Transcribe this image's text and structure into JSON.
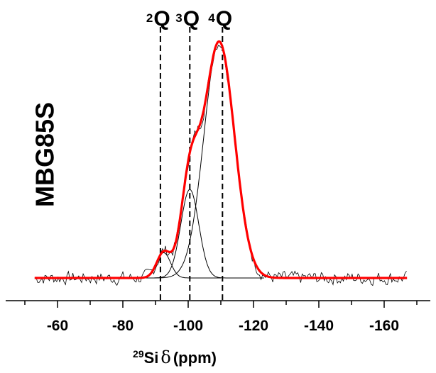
{
  "chart_data": {
    "type": "line",
    "title": "",
    "sample_label": "MBG85S",
    "xlabel": {
      "isotope_mass": "29",
      "element": "Si",
      "symbol": "δ",
      "unit": "(ppm)"
    },
    "ylabel": "",
    "x_reversed": true,
    "xlim": [
      -53,
      -175
    ],
    "xticks": [
      -60,
      -80,
      -100,
      -120,
      -140,
      -160
    ],
    "grid": false,
    "q_markers": [
      {
        "sup": "2",
        "label": "Q",
        "x": -91.5
      },
      {
        "sup": "3",
        "label": "Q",
        "x": -100.5
      },
      {
        "sup": "4",
        "label": "Q",
        "x": -110.5
      }
    ],
    "components": [
      {
        "center": -92.5,
        "height": 0.107,
        "fwhm": 5.0
      },
      {
        "center": -100.5,
        "height": 0.375,
        "fwhm": 6.5
      },
      {
        "center": -109.5,
        "height": 1.0,
        "fwhm": 11.0
      }
    ],
    "fit_color": "#ff0000",
    "experimental_color": "#000000",
    "experimental_range": [
      -53,
      -167
    ],
    "fit_range": [
      -53,
      -167
    ]
  }
}
